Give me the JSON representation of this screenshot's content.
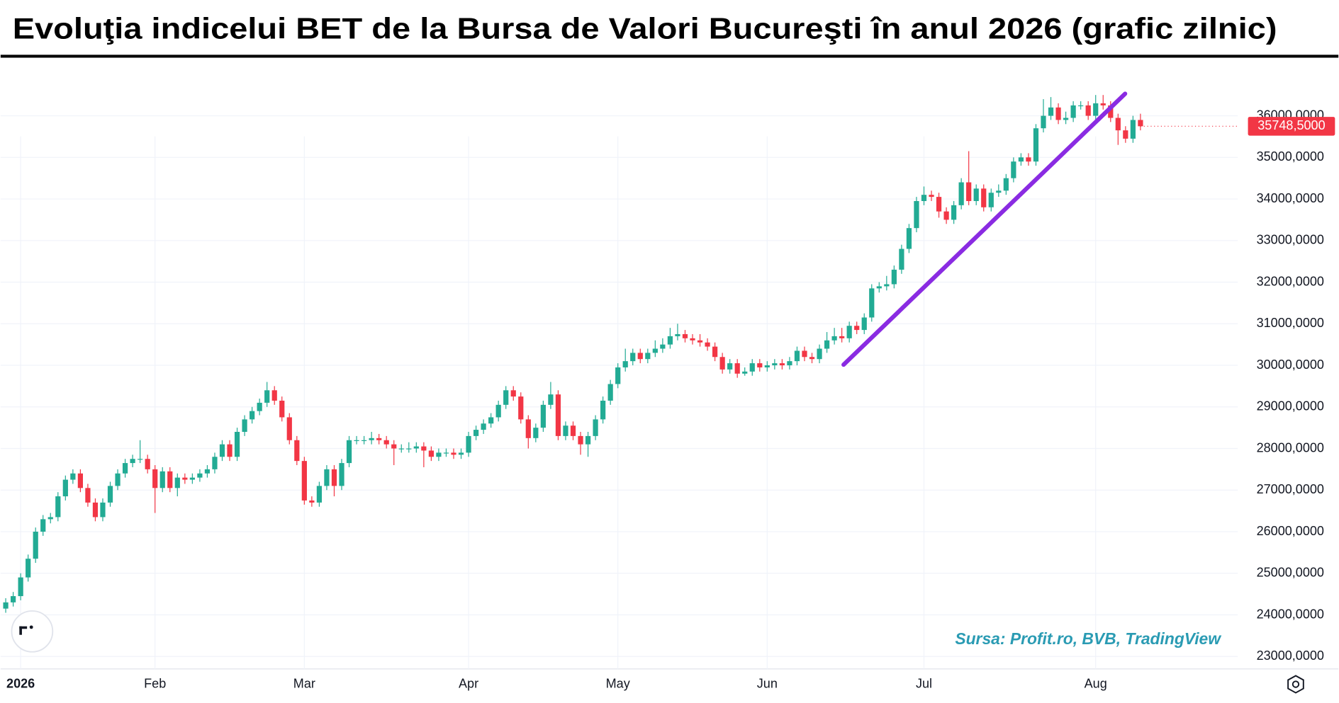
{
  "chart_data": {
    "type": "candlestick",
    "title": "Evoluţia indicelui BET de la Bursa de Valori Bucureşti în anul 2026 (grafic zilnic)",
    "source": "Sursa: Profit.ro, BVB, TradingView",
    "up_color": "#22ab94",
    "down_color": "#f23645",
    "grid": true,
    "ylim": [
      22700,
      37350
    ],
    "yticks": [
      {
        "value": 23000,
        "label": "23000,0000"
      },
      {
        "value": 24000,
        "label": "24000,0000"
      },
      {
        "value": 25000,
        "label": "25000,0000"
      },
      {
        "value": 26000,
        "label": "26000,0000"
      },
      {
        "value": 27000,
        "label": "27000,0000"
      },
      {
        "value": 28000,
        "label": "28000,0000"
      },
      {
        "value": 29000,
        "label": "29000,0000"
      },
      {
        "value": 30000,
        "label": "30000,0000"
      },
      {
        "value": 31000,
        "label": "31000,0000"
      },
      {
        "value": 32000,
        "label": "32000,0000"
      },
      {
        "value": 33000,
        "label": "33000,0000"
      },
      {
        "value": 34000,
        "label": "34000,0000"
      },
      {
        "value": 35000,
        "label": "35000,0000"
      },
      {
        "value": 36000,
        "label": "36000,0000"
      }
    ],
    "last_price_label": "35748,5000",
    "categories": [
      null,
      null,
      "2026",
      null,
      null,
      null,
      null,
      null,
      null,
      null,
      null,
      null,
      null,
      null,
      null,
      null,
      null,
      null,
      null,
      null,
      "Feb",
      null,
      null,
      null,
      null,
      null,
      null,
      null,
      null,
      null,
      null,
      null,
      null,
      null,
      null,
      null,
      null,
      null,
      null,
      null,
      "Mar",
      null,
      null,
      null,
      null,
      null,
      null,
      null,
      null,
      null,
      null,
      null,
      null,
      null,
      null,
      null,
      null,
      null,
      null,
      null,
      null,
      null,
      "Apr",
      null,
      null,
      null,
      null,
      null,
      null,
      null,
      null,
      null,
      null,
      null,
      null,
      null,
      null,
      null,
      null,
      null,
      null,
      null,
      "May",
      null,
      null,
      null,
      null,
      null,
      null,
      null,
      null,
      null,
      null,
      null,
      null,
      null,
      null,
      null,
      null,
      null,
      null,
      null,
      "Jun",
      null,
      null,
      null,
      null,
      null,
      null,
      null,
      null,
      null,
      null,
      null,
      null,
      null,
      null,
      null,
      null,
      null,
      null,
      null,
      null,
      "Jul",
      null,
      null,
      null,
      null,
      null,
      null,
      null,
      null,
      null,
      null,
      null,
      null,
      null,
      null,
      null,
      null,
      null,
      null,
      null,
      null,
      null,
      null,
      "Aug",
      null,
      null,
      null,
      null,
      null,
      null
    ],
    "open": [
      24150,
      24300,
      24450,
      24900,
      25350,
      26000,
      26300,
      26350,
      26850,
      27250,
      27400,
      27050,
      26700,
      26350,
      26700,
      27100,
      27400,
      27650,
      27750,
      27750,
      27500,
      27050,
      27450,
      27050,
      27300,
      27250,
      27300,
      27400,
      27500,
      27800,
      28100,
      27800,
      28400,
      28700,
      28900,
      29100,
      29400,
      29150,
      28750,
      28200,
      27700,
      26750,
      26700,
      27100,
      27500,
      27100,
      27650,
      28200,
      28200,
      28200,
      28250,
      28200,
      28100,
      28000,
      28000,
      28000,
      28050,
      27950,
      27800,
      27900,
      27900,
      27850,
      27900,
      28300,
      28450,
      28600,
      28750,
      29050,
      29400,
      29250,
      28700,
      28250,
      28500,
      29050,
      29300,
      28300,
      28550,
      28300,
      28100,
      28300,
      28700,
      29150,
      29550,
      29950,
      30100,
      30300,
      30150,
      30300,
      30400,
      30500,
      30700,
      30750,
      30650,
      30600,
      30550,
      30450,
      30200,
      29900,
      30050,
      29800,
      29850,
      30050,
      29950,
      30000,
      30050,
      30000,
      30100,
      30350,
      30200,
      30150,
      30400,
      30600,
      30700,
      30650,
      30950,
      30850,
      31150,
      31850,
      31900,
      31950,
      32300,
      32800,
      33300,
      33950,
      34100,
      34050,
      33700,
      33500,
      33850,
      34400,
      33950,
      34250,
      33800,
      34150,
      34200,
      34500,
      34900,
      35000,
      34900,
      35700,
      36000,
      36200,
      35900,
      35950,
      36250,
      36250,
      36000,
      36300,
      36250,
      35950,
      35650,
      35450,
      35900
    ],
    "high": [
      24400,
      24550,
      25000,
      25450,
      26100,
      26400,
      26450,
      26950,
      27350,
      27500,
      27500,
      27150,
      26800,
      26800,
      27200,
      27500,
      27750,
      27850,
      28200,
      27850,
      27600,
      27550,
      27550,
      27400,
      27400,
      27400,
      27500,
      27600,
      27900,
      28200,
      28200,
      28500,
      28800,
      29000,
      29200,
      29600,
      29500,
      29250,
      28850,
      28300,
      27800,
      26850,
      27200,
      27600,
      27600,
      27750,
      28300,
      28300,
      28300,
      28400,
      28350,
      28300,
      28200,
      28100,
      28150,
      28150,
      28150,
      28050,
      28000,
      28000,
      28000,
      28000,
      28400,
      28550,
      28700,
      28850,
      29150,
      29500,
      29500,
      29350,
      28800,
      28600,
      29150,
      29600,
      29400,
      28650,
      28650,
      28400,
      28400,
      28800,
      29250,
      29650,
      30050,
      30400,
      30400,
      30400,
      30400,
      30600,
      30650,
      30900,
      31000,
      30850,
      30750,
      30750,
      30650,
      30550,
      30300,
      30150,
      30150,
      29950,
      30150,
      30150,
      30100,
      30150,
      30150,
      30200,
      30450,
      30450,
      30300,
      30500,
      30800,
      30900,
      30900,
      31050,
      31050,
      31250,
      31950,
      32000,
      32150,
      32400,
      32900,
      33400,
      34050,
      34300,
      34200,
      34150,
      33800,
      33950,
      34500,
      35150,
      34350,
      34350,
      34250,
      34350,
      34600,
      35000,
      35100,
      35100,
      35800,
      36400,
      36450,
      36300,
      36100,
      36350,
      36350,
      36350,
      36500,
      36500,
      36350,
      36050,
      35750,
      36000,
      36050
    ],
    "low": [
      24050,
      24200,
      24350,
      24800,
      25250,
      25900,
      26200,
      26250,
      26750,
      27150,
      26950,
      26600,
      26250,
      26250,
      26600,
      27000,
      27300,
      27550,
      27650,
      27400,
      26450,
      26950,
      26950,
      26850,
      27150,
      27150,
      27200,
      27300,
      27400,
      27700,
      27700,
      27700,
      28300,
      28600,
      28800,
      29000,
      29050,
      28650,
      28100,
      27600,
      26650,
      26600,
      26600,
      27000,
      26850,
      27000,
      27550,
      28100,
      28100,
      28100,
      28100,
      28000,
      27600,
      27900,
      27900,
      27900,
      27550,
      27700,
      27700,
      27800,
      27750,
      27750,
      27800,
      28200,
      28350,
      28500,
      28650,
      28950,
      29150,
      28600,
      28000,
      28150,
      28400,
      28950,
      28200,
      28200,
      28200,
      27850,
      27800,
      28200,
      28600,
      29050,
      29450,
      29850,
      30000,
      30050,
      30050,
      30200,
      30300,
      30400,
      30600,
      30550,
      30500,
      30450,
      30350,
      30100,
      29800,
      29800,
      29700,
      29750,
      29750,
      29850,
      29850,
      29900,
      29900,
      29900,
      30000,
      30100,
      30050,
      30050,
      30300,
      30500,
      30550,
      30550,
      30750,
      30750,
      31050,
      31750,
      31800,
      31850,
      32200,
      32700,
      33200,
      33850,
      33950,
      33550,
      33400,
      33400,
      33750,
      33850,
      33850,
      33700,
      33700,
      34050,
      34100,
      34400,
      34800,
      34800,
      34800,
      35600,
      35900,
      35800,
      35800,
      35850,
      36150,
      35900,
      35900,
      36150,
      35850,
      35300,
      35350,
      35350,
      35650
    ],
    "close": [
      24300,
      24450,
      24900,
      25350,
      26000,
      26300,
      26350,
      26850,
      27250,
      27400,
      27050,
      26700,
      26350,
      26700,
      27100,
      27400,
      27650,
      27750,
      27750,
      27500,
      27050,
      27450,
      27050,
      27300,
      27250,
      27300,
      27400,
      27500,
      27800,
      28100,
      27800,
      28400,
      28700,
      28900,
      29100,
      29400,
      29150,
      28750,
      28200,
      27700,
      26750,
      26700,
      27100,
      27500,
      27100,
      27650,
      28200,
      28200,
      28200,
      28250,
      28200,
      28100,
      28000,
      28000,
      28000,
      28050,
      27950,
      27800,
      27900,
      27900,
      27850,
      27900,
      28300,
      28450,
      28600,
      28750,
      29050,
      29400,
      29250,
      28700,
      28250,
      28500,
      29050,
      29300,
      28300,
      28550,
      28300,
      28100,
      28300,
      28700,
      29150,
      29550,
      29950,
      30100,
      30300,
      30150,
      30300,
      30400,
      30500,
      30700,
      30750,
      30650,
      30600,
      30550,
      30450,
      30200,
      29900,
      30050,
      29800,
      29850,
      30050,
      29950,
      30000,
      30050,
      30000,
      30100,
      30350,
      30200,
      30150,
      30400,
      30600,
      30700,
      30650,
      30950,
      30850,
      31150,
      31850,
      31900,
      31950,
      32300,
      32800,
      33300,
      33950,
      34100,
      34050,
      33700,
      33500,
      33850,
      34400,
      33950,
      34250,
      33800,
      34150,
      34200,
      34500,
      34900,
      35000,
      34900,
      35700,
      36000,
      36200,
      35900,
      35950,
      36250,
      36250,
      36000,
      36300,
      36250,
      35950,
      35650,
      35450,
      35900,
      35748.5
    ]
  }
}
